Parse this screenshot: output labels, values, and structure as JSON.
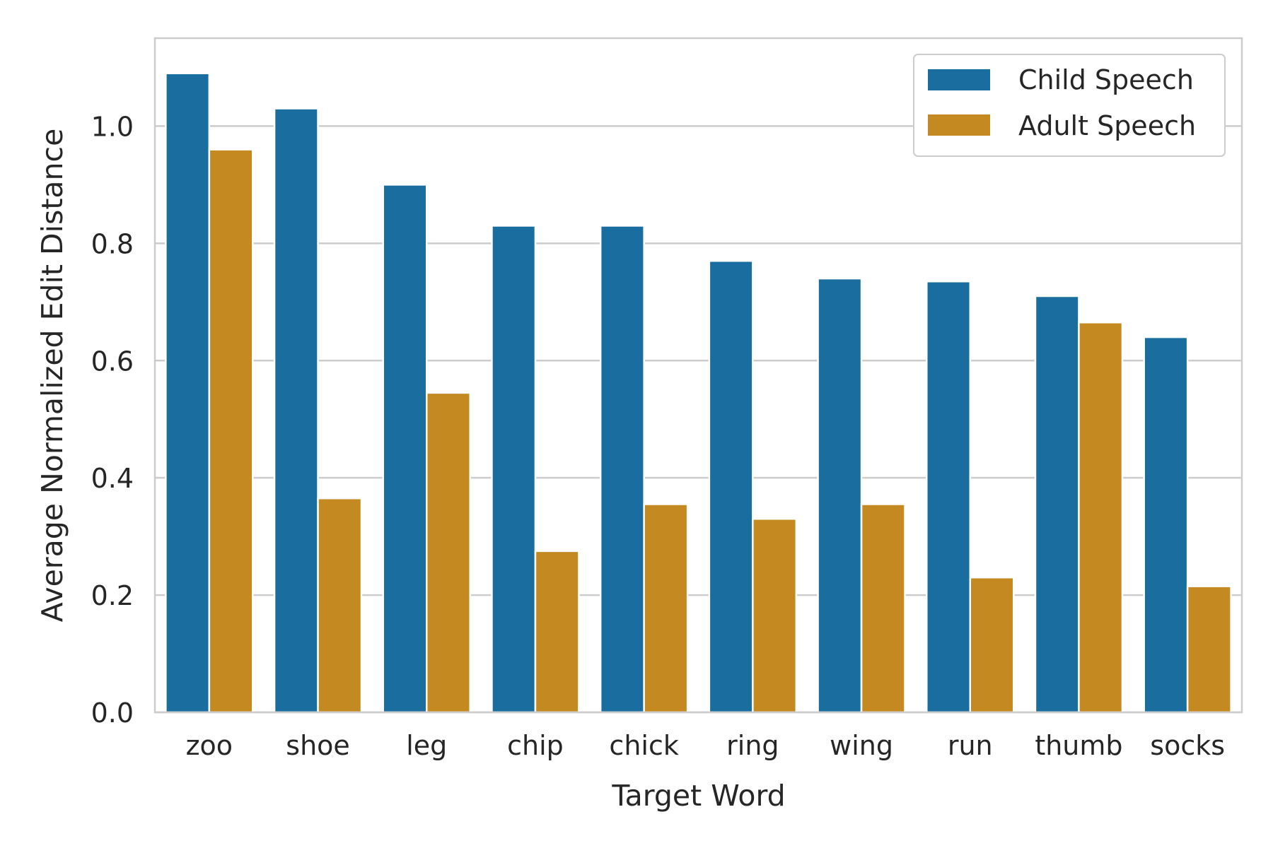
{
  "chart_data": {
    "type": "bar",
    "title": "",
    "xlabel": "Target Word",
    "ylabel": "Average Normalized Edit Distance",
    "categories": [
      "zoo",
      "shoe",
      "leg",
      "chip",
      "chick",
      "ring",
      "wing",
      "run",
      "thumb",
      "socks"
    ],
    "series": [
      {
        "name": "Child Speech",
        "color": "#1a6e9f",
        "values": [
          1.09,
          1.03,
          0.9,
          0.83,
          0.83,
          0.77,
          0.74,
          0.735,
          0.71,
          0.64
        ]
      },
      {
        "name": "Adult Speech",
        "color": "#c48921",
        "values": [
          0.96,
          0.365,
          0.545,
          0.275,
          0.355,
          0.33,
          0.355,
          0.23,
          0.665,
          0.215
        ]
      }
    ],
    "ylim": [
      0,
      1.15
    ],
    "yticks": [
      0.0,
      0.2,
      0.4,
      0.6,
      0.8,
      1.0
    ],
    "ytick_labels": [
      "0.0",
      "0.2",
      "0.4",
      "0.6",
      "0.8",
      "1.0"
    ],
    "grid": "horizontal",
    "legend_position": "top-right"
  }
}
